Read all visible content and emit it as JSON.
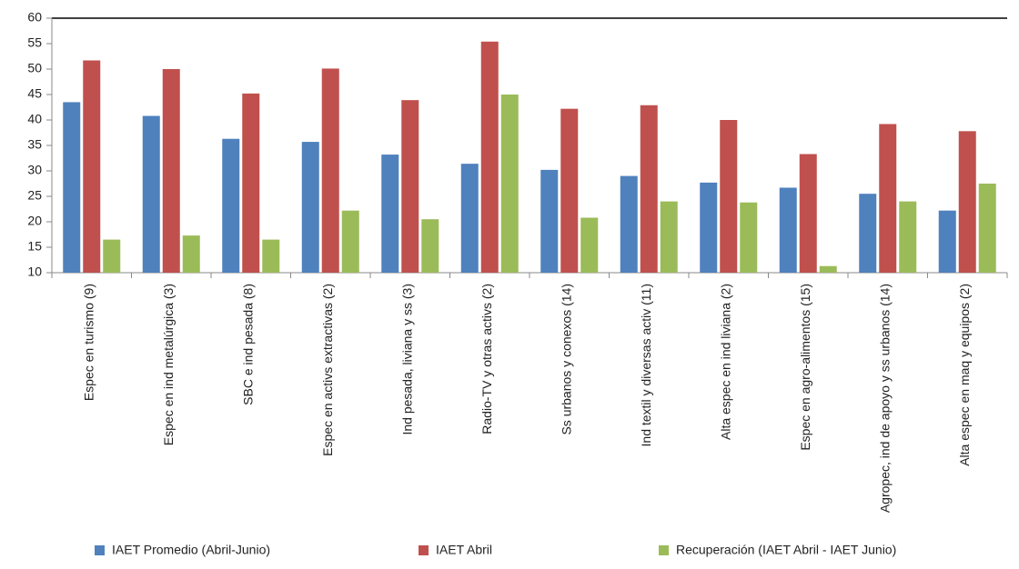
{
  "chart_data": {
    "type": "bar",
    "categories": [
      "Espec en turismo (9)",
      "Espec en ind metalúrgica (3)",
      "SBC e ind pesada (8)",
      "Espec en activs extractivas (2)",
      "Ind pesada, liviana y ss (3)",
      "Radio-TV y otras activs (2)",
      "Ss urbanos y conexos (14)",
      "Ind textil y diversas activ (11)",
      "Alta espec en ind liviana (2)",
      "Espec en agro-alimentos (15)",
      "Agropec, ind de apoyo y ss urbanos (14)",
      "Alta espec en maq y equipos (2)"
    ],
    "series": [
      {
        "name": "IAET Promedio (Abril-Junio)",
        "color": "#4f81bd",
        "values": [
          43.5,
          40.8,
          36.3,
          35.7,
          33.2,
          31.4,
          30.2,
          29.0,
          27.7,
          26.7,
          25.5,
          22.2
        ]
      },
      {
        "name": "IAET Abril",
        "color": "#c0504d",
        "values": [
          51.7,
          50.0,
          45.2,
          50.1,
          43.9,
          55.4,
          42.2,
          42.9,
          40.0,
          33.3,
          39.2,
          37.8
        ]
      },
      {
        "name": "Recuperación (IAET Abril - IAET Junio)",
        "color": "#9bbb59",
        "values": [
          16.5,
          17.3,
          16.5,
          22.2,
          20.5,
          45.0,
          20.8,
          24.0,
          23.8,
          11.3,
          24.0,
          27.5
        ]
      }
    ],
    "ylim": [
      10,
      60
    ],
    "yticks": [
      10,
      15,
      20,
      25,
      30,
      35,
      40,
      45,
      50,
      55,
      60
    ],
    "grid": false
  }
}
